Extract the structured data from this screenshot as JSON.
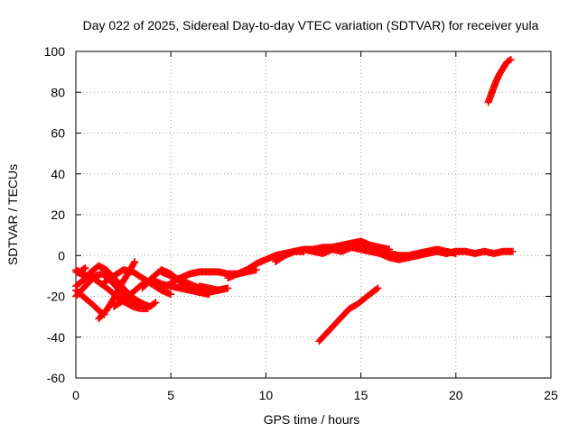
{
  "chart_data": {
    "type": "scatter",
    "title": "Day 022 of 2025, Sidereal Day-to-day VTEC variation (SDTVAR) for receiver yula",
    "xlabel": "GPS time / hours",
    "ylabel": "SDTVAR / TECUs",
    "xlim": [
      0,
      25
    ],
    "ylim": [
      -60,
      100
    ],
    "xticks": [
      "0",
      "5",
      "10",
      "15",
      "20",
      "25"
    ],
    "yticks": [
      "-60",
      "-40",
      "-20",
      "0",
      "20",
      "40",
      "60",
      "80",
      "100"
    ],
    "grid": true,
    "marker": "plus",
    "color": "#ff0000",
    "series": [
      {
        "x": [
          0.0,
          0.5,
          1.0,
          1.2,
          1.5
        ],
        "y": [
          -17,
          -21,
          -25,
          -27,
          -29
        ]
      },
      {
        "x": [
          1.2,
          1.6,
          2.0,
          2.4,
          2.8,
          3.1
        ],
        "y": [
          -31,
          -27,
          -21,
          -14,
          -8,
          -3
        ]
      },
      {
        "x": [
          0.0,
          0.4,
          0.8,
          1.2,
          1.6,
          2.0,
          2.4,
          2.8,
          3.2,
          3.6,
          3.9,
          4.2
        ],
        "y": [
          -15,
          -12,
          -8,
          -5,
          -7,
          -11,
          -15,
          -19,
          -22,
          -24,
          -25,
          -23
        ]
      },
      {
        "x": [
          0.0,
          0.3,
          0.6,
          0.9,
          1.2,
          1.5,
          1.9,
          2.2,
          2.6,
          3.0,
          3.4,
          3.8
        ],
        "y": [
          -8,
          -9,
          -10,
          -11,
          -13,
          -15,
          -18,
          -21,
          -23,
          -25,
          -26,
          -26
        ]
      },
      {
        "x": [
          0.0,
          0.3,
          0.7,
          1.0,
          1.4,
          1.8,
          2.2,
          2.5,
          2.9,
          3.3,
          3.7
        ],
        "y": [
          -20,
          -17,
          -13,
          -10,
          -9,
          -12,
          -16,
          -20,
          -23,
          -24,
          -25
        ]
      },
      {
        "x": [
          0.0,
          0.2,
          0.5
        ],
        "y": [
          -7,
          -8,
          -6
        ]
      },
      {
        "x": [
          2.0,
          2.5,
          3.0,
          3.5,
          4.0,
          4.5
        ],
        "y": [
          -25,
          -22,
          -18,
          -14,
          -12,
          -14
        ]
      },
      {
        "x": [
          1.5,
          2.0,
          2.5,
          3.0,
          3.5,
          4.0,
          4.5,
          5.0
        ],
        "y": [
          -13,
          -10,
          -7,
          -8,
          -11,
          -14,
          -17,
          -19
        ]
      },
      {
        "x": [
          3.5,
          4.0,
          4.5,
          5.0,
          5.5,
          6.0,
          6.5,
          7.0
        ],
        "y": [
          -16,
          -11,
          -7,
          -9,
          -13,
          -16,
          -18,
          -19
        ]
      },
      {
        "x": [
          4.0,
          4.5,
          5.0,
          5.5,
          6.0,
          6.5,
          7.0,
          7.5
        ],
        "y": [
          -12,
          -14,
          -15,
          -16,
          -17,
          -18,
          -18,
          -17
        ]
      },
      {
        "x": [
          4.5,
          5.0,
          5.5,
          6.0,
          6.5,
          7.0,
          7.5,
          8.0
        ],
        "y": [
          -8,
          -10,
          -12,
          -14,
          -16,
          -17,
          -17,
          -16
        ]
      },
      {
        "x": [
          5.0,
          5.5,
          6.0,
          6.5,
          7.0,
          7.5,
          8.0,
          8.5,
          9.0,
          9.5
        ],
        "y": [
          -13,
          -11,
          -9,
          -8,
          -8,
          -8,
          -9,
          -9,
          -8,
          -7
        ]
      },
      {
        "x": [
          6.5,
          7.0,
          7.5,
          8.0
        ],
        "y": [
          -15,
          -16,
          -17,
          -16
        ]
      },
      {
        "x": [
          8.0,
          8.5,
          9.0,
          9.5,
          10.0,
          10.5,
          11.0,
          11.5,
          12.0
        ],
        "y": [
          -11,
          -9,
          -7,
          -4,
          -2,
          0,
          1,
          2,
          2
        ]
      },
      {
        "x": [
          10.5,
          11.0,
          11.5,
          12.0,
          12.5,
          13.0,
          13.5,
          14.0,
          14.5,
          15.0,
          15.5,
          16.0,
          16.5
        ],
        "y": [
          -3,
          0,
          2,
          3,
          3,
          4,
          4,
          5,
          6,
          6,
          5,
          4,
          3
        ]
      },
      {
        "x": [
          12.0,
          12.5,
          13.0,
          13.5,
          14.0,
          14.5,
          15.0,
          15.5,
          16.0,
          16.5,
          17.0,
          17.5,
          18.0,
          18.5,
          19.0,
          19.5,
          20.0,
          20.5,
          21.0,
          21.5,
          22.0,
          22.5,
          23.0
        ],
        "y": [
          3,
          2,
          1,
          3,
          2,
          4,
          3,
          2,
          1,
          -1,
          -2,
          -1,
          0,
          1,
          2,
          1,
          2,
          2,
          1,
          2,
          1,
          2,
          2
        ]
      },
      {
        "x": [
          13.0,
          13.5,
          14.0,
          14.5,
          15.0,
          15.5,
          16.0,
          16.5,
          17.0,
          17.5,
          18.0,
          18.5,
          19.0,
          19.5,
          20.0
        ],
        "y": [
          3,
          4,
          5,
          6,
          7,
          5,
          3,
          1,
          0,
          0,
          1,
          2,
          3,
          2,
          1
        ]
      },
      {
        "x": [
          12.8,
          13.2,
          13.6,
          14.0,
          14.4,
          14.8,
          15.2,
          15.6,
          15.9
        ],
        "y": [
          -42,
          -38,
          -34,
          -30,
          -26,
          -24,
          -21,
          -18,
          -16
        ]
      },
      {
        "x": [
          21.7,
          21.9,
          22.1,
          22.3,
          22.5,
          22.7,
          22.9
        ],
        "y": [
          75,
          80,
          85,
          89,
          92,
          95,
          96
        ]
      }
    ]
  }
}
